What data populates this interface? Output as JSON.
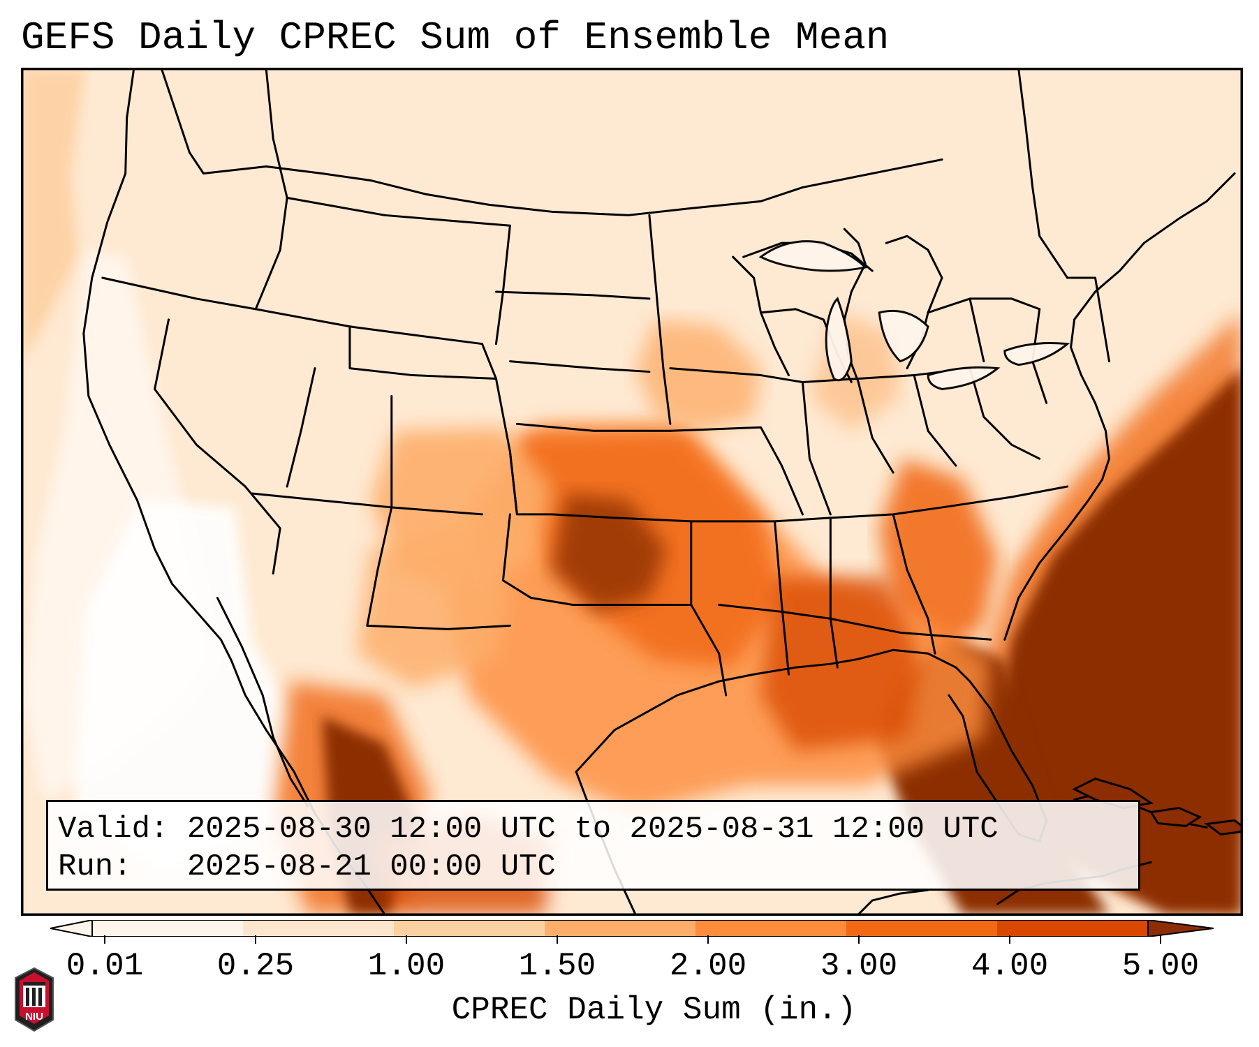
{
  "map": {
    "title": "GEFS Daily CPREC Sum of Ensemble Mean",
    "info": {
      "valid_label": "Valid:",
      "valid_value": "2025-08-30 12:00 UTC to 2025-08-31 12:00 UTC",
      "run_label": "Run:",
      "run_value": "2025-08-21 00:00 UTC"
    },
    "colorbar": {
      "label": "CPREC Daily Sum (in.)",
      "tick_labels": [
        "0.01",
        "0.25",
        "1.00",
        "1.50",
        "2.00",
        "3.00",
        "4.00",
        "5.00"
      ],
      "colors": [
        "#fff5eb",
        "#fee6ce",
        "#fdd0a2",
        "#fdae6b",
        "#fd8d3c",
        "#f16913",
        "#d94801",
        "#8c2d04"
      ],
      "extend": "both"
    },
    "logo": {
      "text": "NIU",
      "colors": {
        "red": "#c8102e",
        "black": "#000000"
      }
    },
    "colors": {
      "land_light": "#fff5eb",
      "precip_light": "#fee6ce",
      "precip_mid": "#fdae6b",
      "precip_orange": "#f16913",
      "precip_dark": "#d94801",
      "precip_max": "#8c2d04",
      "borders": "#000000"
    }
  }
}
